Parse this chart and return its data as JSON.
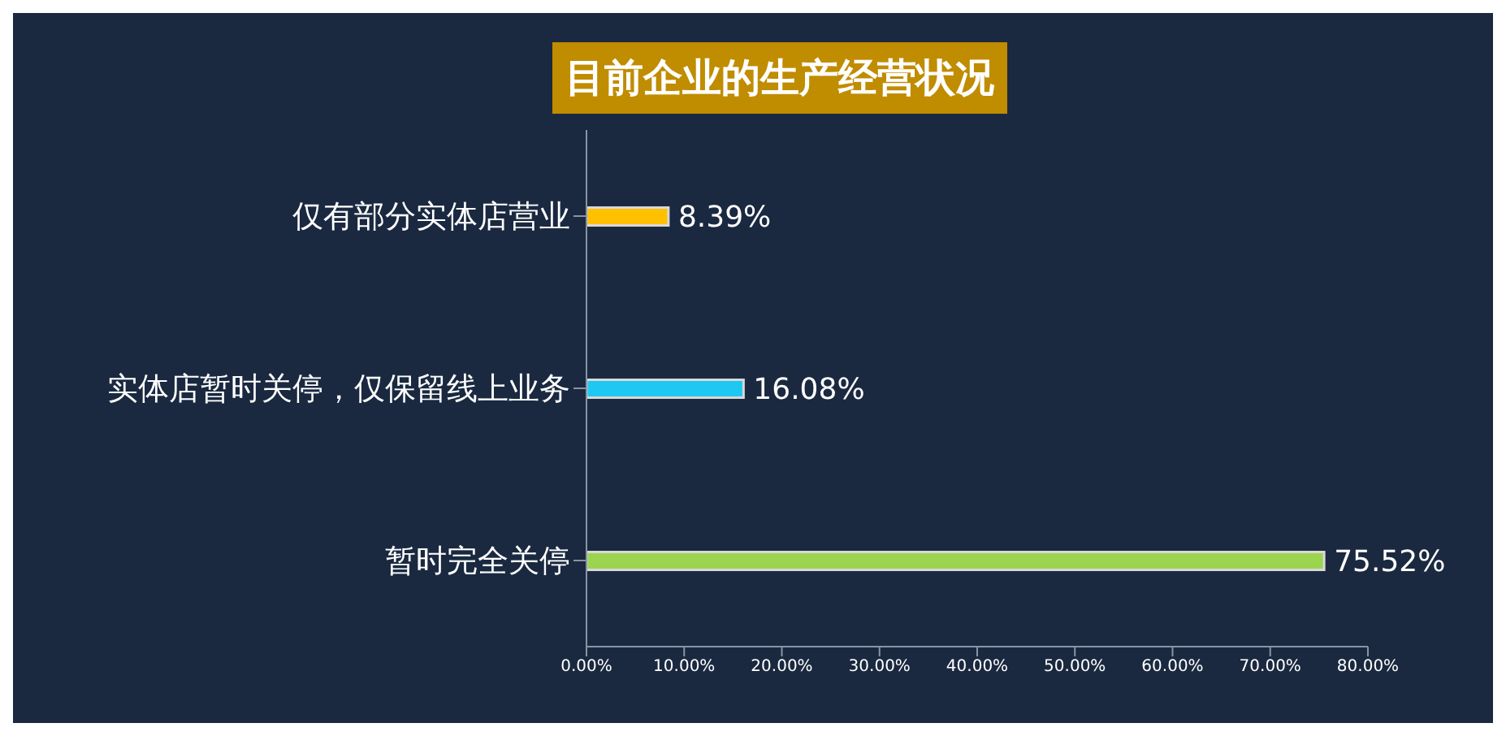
{
  "chart_data": {
    "type": "bar",
    "orientation": "horizontal",
    "title": "目前企业的生产经营状况",
    "categories": [
      "仅有部分实体店营业",
      "实体店暂时关停，仅保留线上业务",
      "暂时完全关停"
    ],
    "values": [
      8.39,
      16.08,
      75.52
    ],
    "colors": [
      "#ffc000",
      "#1ec8f0",
      "#9bd44f"
    ],
    "value_labels": [
      "8.39%",
      "16.08%",
      "75.52%"
    ],
    "xlim": [
      0,
      80
    ],
    "xticks": [
      {
        "value": 0,
        "label": "0.00%"
      },
      {
        "value": 10,
        "label": "10.00%"
      },
      {
        "value": 20,
        "label": "20.00%"
      },
      {
        "value": 30,
        "label": "30.00%"
      },
      {
        "value": 40,
        "label": "40.00%"
      },
      {
        "value": 50,
        "label": "50.00%"
      },
      {
        "value": 60,
        "label": "60.00%"
      },
      {
        "value": 70,
        "label": "70.00%"
      },
      {
        "value": 80,
        "label": "80.00%"
      }
    ],
    "grid": false,
    "legend": false
  }
}
